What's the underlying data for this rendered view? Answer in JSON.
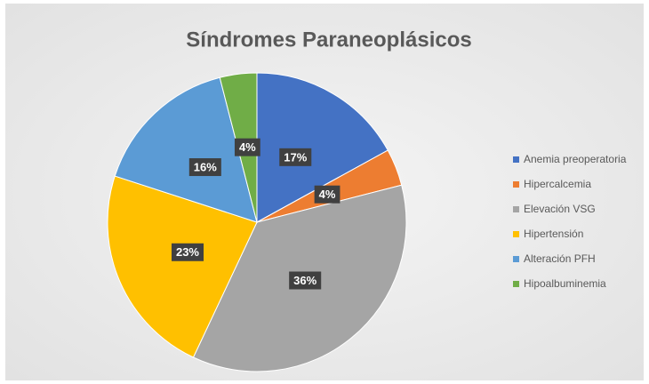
{
  "chart_data": {
    "type": "pie",
    "title": "Síndromes Paraneoplásicos",
    "categories": [
      "Anemia preoperatoria",
      "Hipercalcemia",
      "Elevación VSG",
      "Hipertensión",
      "Alteración PFH",
      "Hipoalbuminemia"
    ],
    "values": [
      17,
      4,
      36,
      23,
      16,
      4
    ],
    "value_labels": [
      "17%",
      "4%",
      "36%",
      "23%",
      "16%",
      "4%"
    ],
    "colors": [
      "#4472c4",
      "#ed7d31",
      "#a5a5a5",
      "#ffc000",
      "#5b9bd5",
      "#70ad47"
    ],
    "legend": "right"
  }
}
